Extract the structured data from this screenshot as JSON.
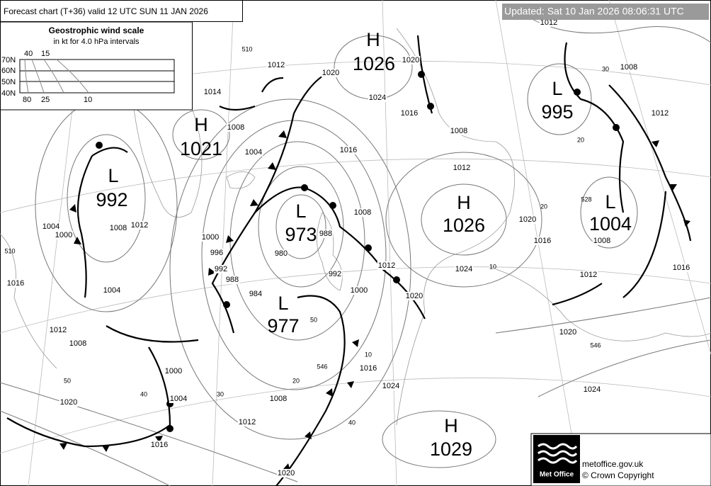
{
  "header": {
    "title": "Forecast chart (T+36) valid 12 UTC SUN 11  JAN 2026",
    "updated": "Updated: Sat 10 Jan 2026 08:06:31 UTC"
  },
  "wind_scale": {
    "title": "Geostrophic wind scale",
    "subtitle": "in kt for 4.0 hPa intervals",
    "latitudes": [
      "70N",
      "60N",
      "50N",
      "40N"
    ],
    "top_speeds": [
      "40",
      "15"
    ],
    "bottom_speeds": [
      "80",
      "25",
      "10"
    ]
  },
  "centres": [
    {
      "type": "H",
      "pressure": "1026"
    },
    {
      "type": "H",
      "pressure": "1021"
    },
    {
      "type": "L",
      "pressure": "992"
    },
    {
      "type": "L",
      "pressure": "973"
    },
    {
      "type": "L",
      "pressure": "977"
    },
    {
      "type": "H",
      "pressure": "1026"
    },
    {
      "type": "L",
      "pressure": "995"
    },
    {
      "type": "L",
      "pressure": "1004"
    },
    {
      "type": "H",
      "pressure": "1029"
    }
  ],
  "isobar_labels": [
    "1012",
    "1020",
    "1024",
    "1020",
    "1016",
    "1008",
    "1012",
    "1016",
    "1008",
    "1004",
    "1008",
    "1014",
    "1012",
    "1008",
    "1012",
    "1016",
    "1020",
    "1016",
    "1008",
    "1012",
    "1024",
    "1020",
    "1024",
    "1024",
    "1016",
    "1020",
    "1012",
    "1000",
    "992",
    "988",
    "980",
    "984",
    "988",
    "992",
    "996",
    "1000",
    "1004",
    "1000",
    "1008",
    "1012",
    "1016",
    "1004",
    "1012",
    "1008",
    "1000",
    "1004",
    "1008",
    "1012",
    "1016",
    "1020",
    "1020"
  ],
  "thickness_labels": [
    "510",
    "510",
    "528",
    "546",
    "546",
    "50",
    "50",
    "40",
    "30",
    "20",
    "40",
    "10",
    "20",
    "10",
    "20",
    "30"
  ],
  "footer": {
    "logo": "Met Office",
    "site": "metoffice.gov.uk",
    "copyright": "© Crown Copyright"
  }
}
